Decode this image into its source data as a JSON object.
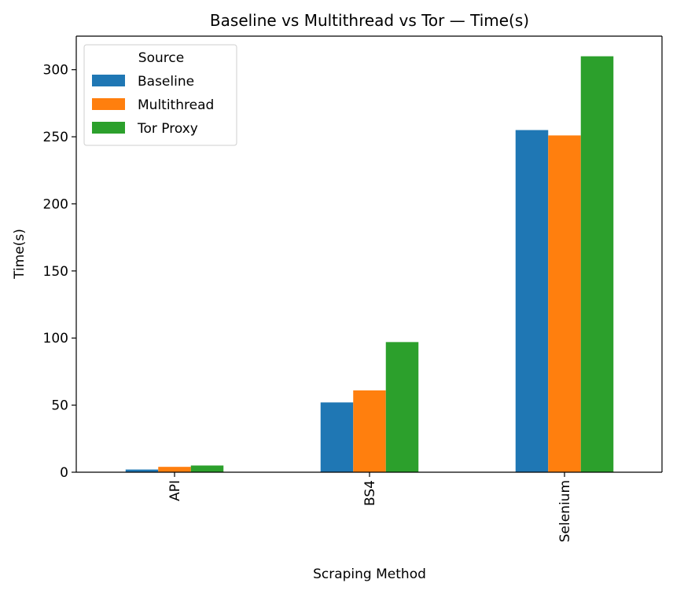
{
  "chart_data": {
    "type": "bar",
    "title": "Baseline vs Multithread vs Tor — Time(s)",
    "xlabel": "Scraping Method",
    "ylabel": "Time(s)",
    "categories": [
      "API",
      "BS4",
      "Selenium"
    ],
    "ylim": [
      0,
      325
    ],
    "yticks": [
      0,
      50,
      100,
      150,
      200,
      250,
      300
    ],
    "legend_title": "Source",
    "legend_position": "top-left",
    "series": [
      {
        "name": "Baseline",
        "values": [
          2,
          52,
          255
        ],
        "color": "#1f77b4"
      },
      {
        "name": "Multithread",
        "values": [
          4,
          61,
          251
        ],
        "color": "#ff7f0e"
      },
      {
        "name": "Tor Proxy",
        "values": [
          5,
          97,
          310
        ],
        "color": "#2ca02c"
      }
    ]
  }
}
